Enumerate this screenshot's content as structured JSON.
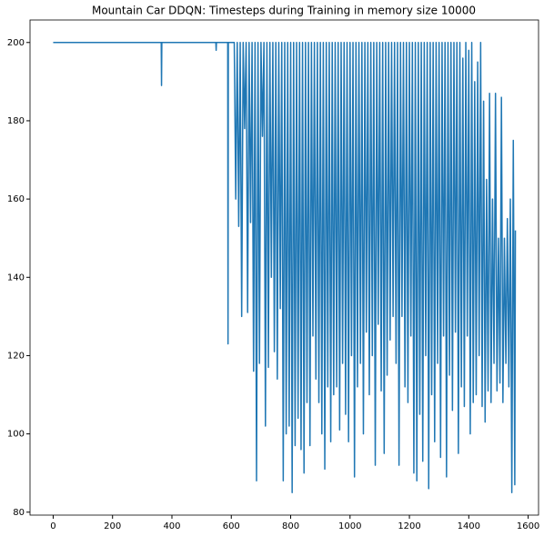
{
  "chart_data": {
    "type": "line",
    "title": "Mountain Car DDQN: Timesteps during Training in memory size 10000",
    "x": [
      0,
      364,
      365,
      366,
      548,
      549,
      550,
      588,
      589,
      590,
      605,
      610,
      615,
      620,
      625,
      630,
      635,
      640,
      645,
      650,
      655,
      660,
      665,
      670,
      675,
      680,
      685,
      690,
      695,
      700,
      705,
      710,
      715,
      720,
      725,
      730,
      735,
      740,
      745,
      750,
      755,
      760,
      765,
      770,
      775,
      780,
      785,
      790,
      795,
      800,
      805,
      810,
      815,
      820,
      825,
      830,
      835,
      840,
      845,
      850,
      855,
      860,
      865,
      870,
      875,
      880,
      885,
      890,
      895,
      900,
      905,
      910,
      915,
      920,
      925,
      930,
      935,
      940,
      945,
      950,
      955,
      960,
      965,
      970,
      975,
      980,
      985,
      990,
      995,
      1000,
      1005,
      1010,
      1015,
      1020,
      1025,
      1030,
      1035,
      1040,
      1045,
      1050,
      1055,
      1060,
      1065,
      1070,
      1075,
      1080,
      1085,
      1090,
      1095,
      1100,
      1105,
      1110,
      1115,
      1120,
      1125,
      1130,
      1135,
      1140,
      1145,
      1150,
      1155,
      1160,
      1165,
      1170,
      1175,
      1180,
      1185,
      1190,
      1195,
      1200,
      1205,
      1210,
      1215,
      1220,
      1225,
      1230,
      1235,
      1240,
      1245,
      1250,
      1255,
      1260,
      1265,
      1270,
      1275,
      1280,
      1285,
      1290,
      1295,
      1300,
      1305,
      1310,
      1315,
      1320,
      1325,
      1330,
      1335,
      1340,
      1345,
      1350,
      1355,
      1360,
      1365,
      1370,
      1375,
      1380,
      1385,
      1390,
      1395,
      1400,
      1405,
      1410,
      1415,
      1420,
      1425,
      1430,
      1435,
      1440,
      1445,
      1450,
      1455,
      1460,
      1465,
      1470,
      1475,
      1480,
      1485,
      1490,
      1495,
      1500,
      1505,
      1510,
      1515,
      1520,
      1525,
      1530,
      1535,
      1540,
      1545,
      1550,
      1555,
      1557
    ],
    "values": [
      200,
      200,
      189,
      200,
      200,
      198,
      200,
      200,
      123,
      200,
      200,
      200,
      160,
      200,
      153,
      200,
      130,
      200,
      178,
      200,
      131,
      200,
      154,
      200,
      116,
      200,
      88,
      200,
      118,
      200,
      176,
      200,
      102,
      200,
      117,
      200,
      140,
      200,
      121,
      200,
      114,
      200,
      132,
      200,
      88,
      200,
      100,
      200,
      102,
      200,
      85,
      200,
      97,
      200,
      104,
      200,
      96,
      200,
      90,
      200,
      108,
      200,
      97,
      200,
      125,
      200,
      114,
      200,
      108,
      200,
      100,
      200,
      91,
      200,
      112,
      200,
      98,
      200,
      110,
      200,
      112,
      200,
      101,
      200,
      118,
      200,
      105,
      200,
      98,
      200,
      120,
      200,
      89,
      200,
      112,
      200,
      118,
      200,
      100,
      200,
      126,
      200,
      110,
      200,
      120,
      200,
      92,
      200,
      128,
      200,
      111,
      200,
      95,
      200,
      115,
      200,
      124,
      200,
      130,
      200,
      118,
      200,
      92,
      200,
      130,
      200,
      112,
      200,
      108,
      200,
      125,
      200,
      90,
      200,
      88,
      200,
      105,
      200,
      93,
      200,
      120,
      200,
      86,
      200,
      110,
      200,
      98,
      200,
      118,
      200,
      94,
      200,
      125,
      200,
      89,
      200,
      115,
      200,
      106,
      200,
      126,
      200,
      95,
      200,
      112,
      196,
      107,
      200,
      125,
      198,
      100,
      200,
      108,
      190,
      110,
      195,
      120,
      200,
      107,
      185,
      103,
      165,
      111,
      187,
      108,
      160,
      118,
      187,
      111,
      150,
      113,
      186,
      108,
      150,
      118,
      155,
      112,
      160,
      85,
      175,
      87,
      152
    ],
    "color": "#1f77b4",
    "xlim": [
      -78,
      1635
    ],
    "ylim": [
      79.25,
      205.75
    ],
    "xticks": [
      0,
      200,
      400,
      600,
      800,
      1000,
      1200,
      1400,
      1600
    ],
    "yticks": [
      80,
      100,
      120,
      140,
      160,
      180,
      200
    ],
    "grid": false
  }
}
